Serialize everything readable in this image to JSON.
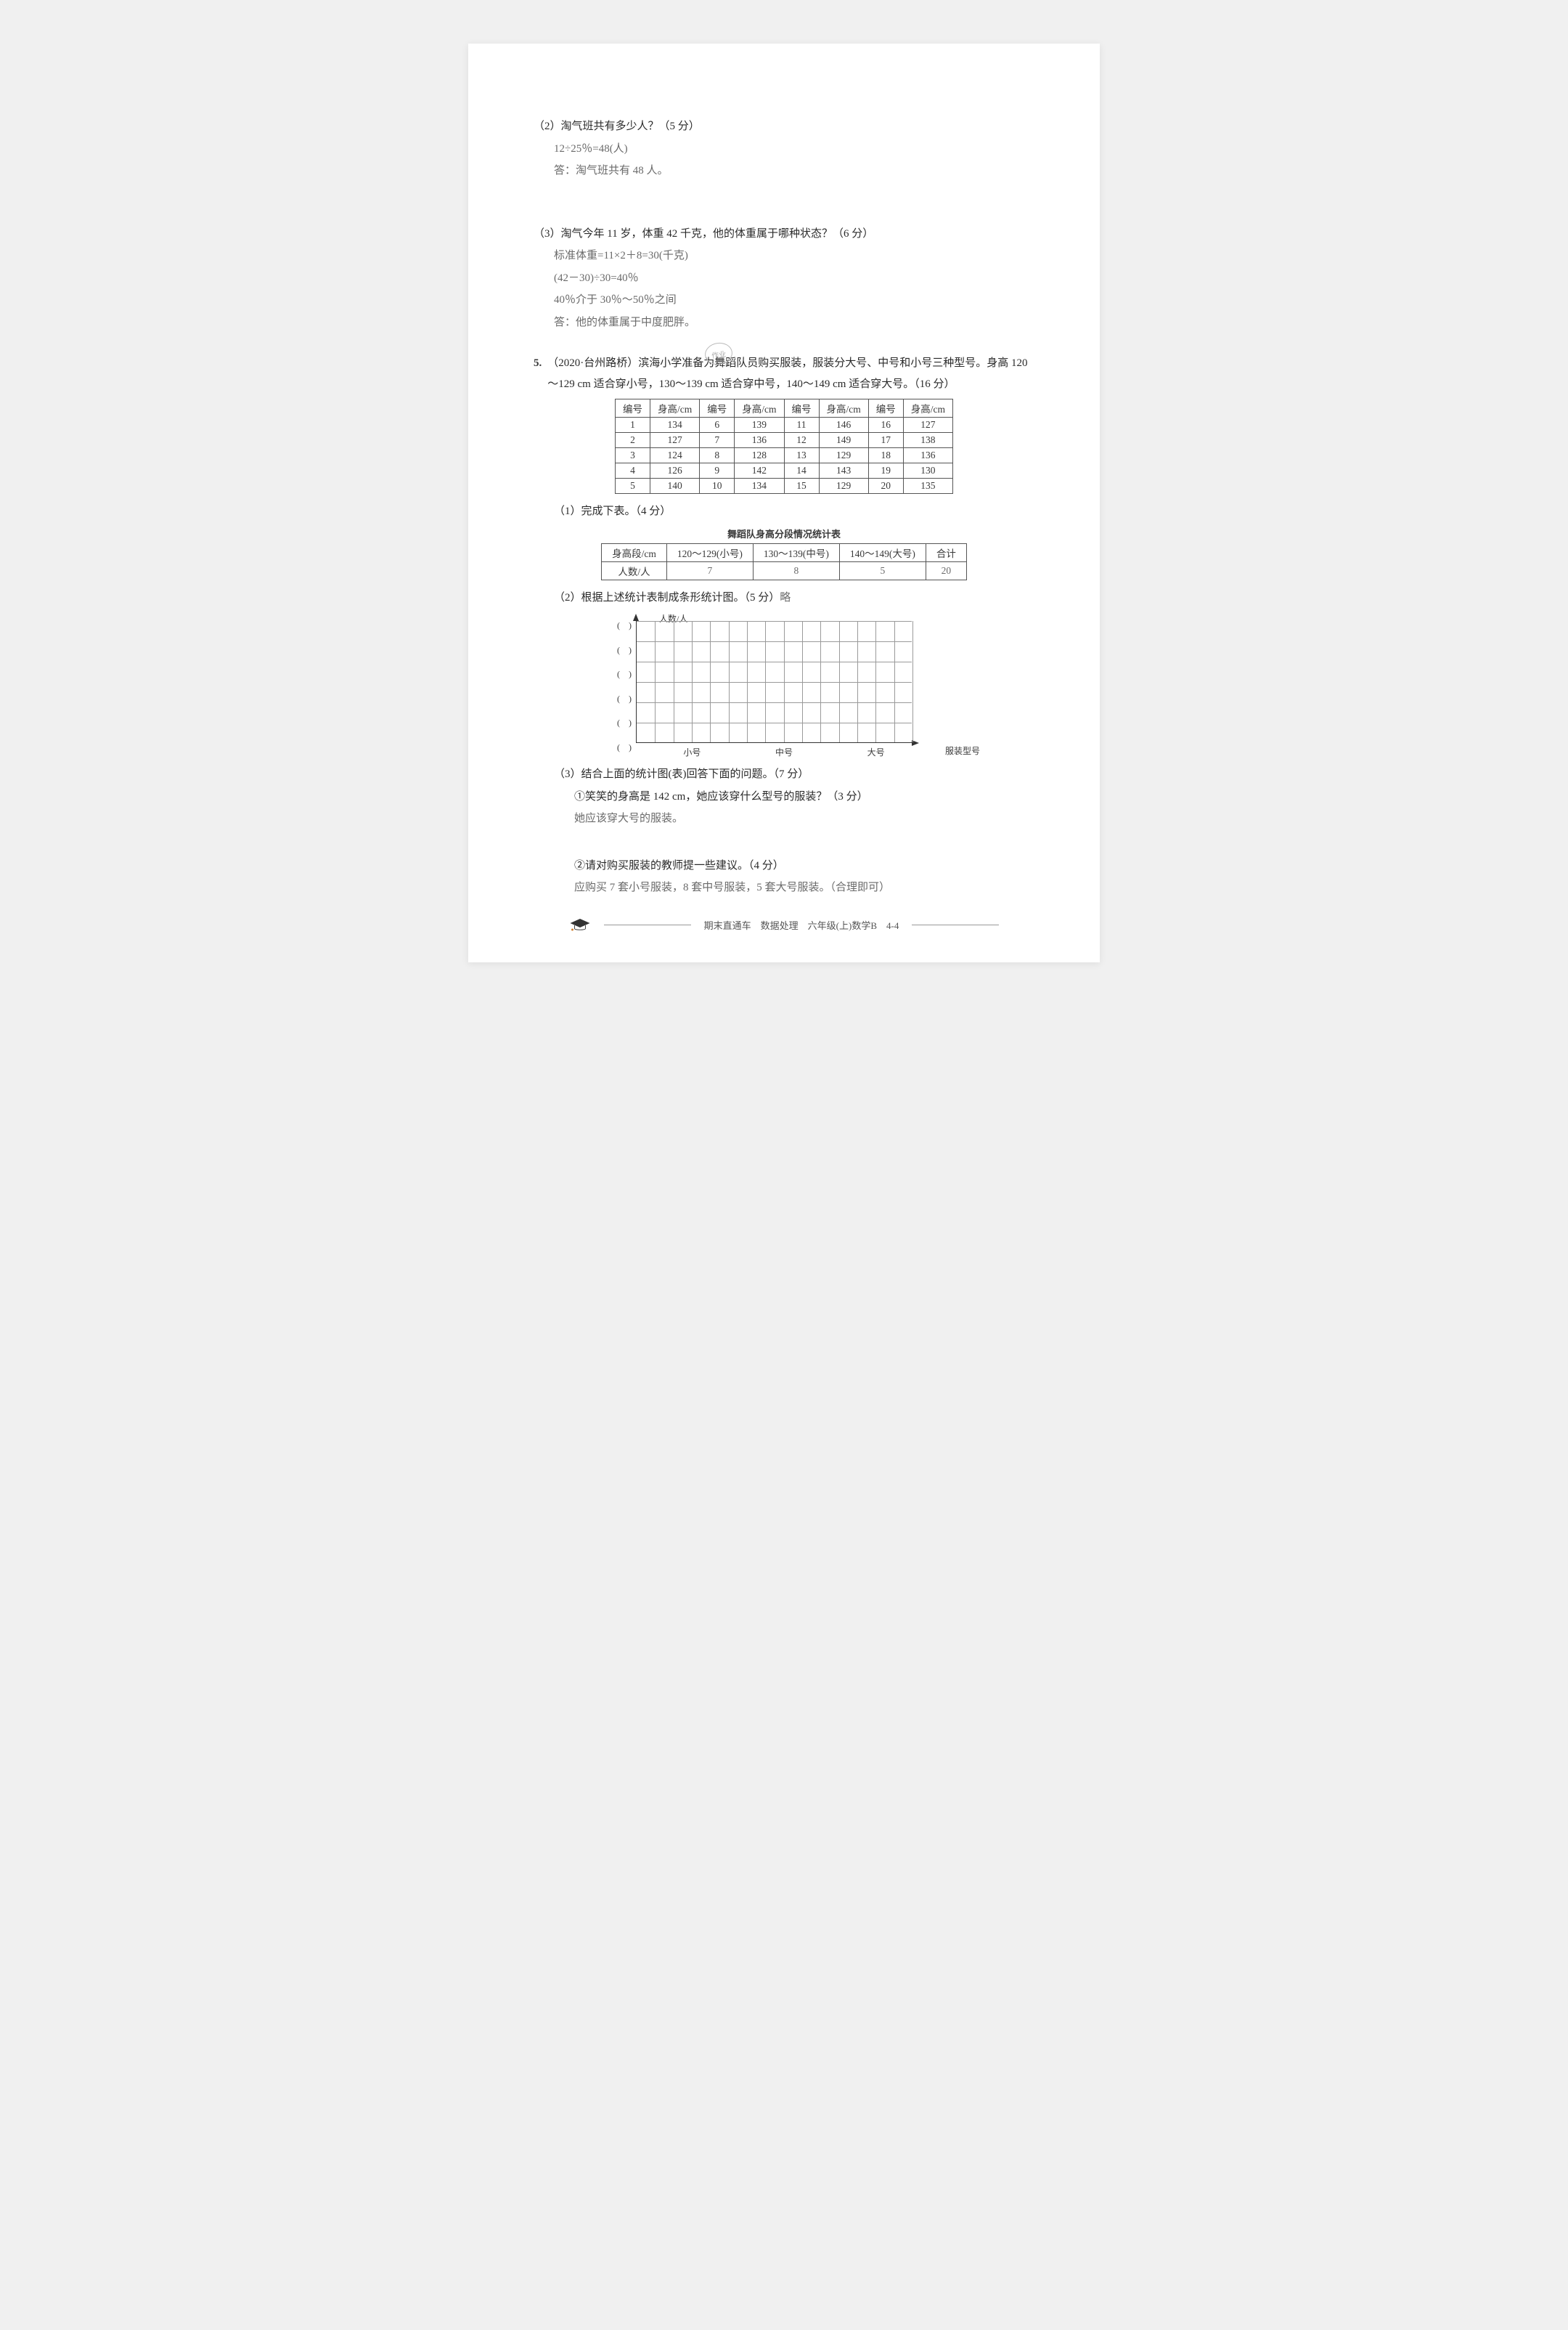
{
  "q2": {
    "question": "（2）淘气班共有多少人？（5 分）",
    "work1": "12÷25％=48(人)",
    "work2": "答：淘气班共有 48 人。"
  },
  "q3": {
    "question": "（3）淘气今年 11 岁，体重 42 千克，他的体重属于哪种状态？（6 分）",
    "work1": "标准体重=11×2＋8=30(千克)",
    "work2": "(42－30)÷30=40％",
    "work3": "40％介于 30％～50％之间",
    "work4": "答：他的体重属于中度肥胖。"
  },
  "stamp_text": "作业",
  "q5": {
    "num": "5.",
    "intro": "（2020·台州路桥）滨海小学准备为舞蹈队员购买服装，服装分大号、中号和小号三种型号。身高 120～129 cm 适合穿小号，130～139 cm 适合穿中号，140～149 cm 适合穿大号。（16 分）",
    "table": {
      "headers": [
        "编号",
        "身高/cm",
        "编号",
        "身高/cm",
        "编号",
        "身高/cm",
        "编号",
        "身高/cm"
      ],
      "rows": [
        [
          "1",
          "134",
          "6",
          "139",
          "11",
          "146",
          "16",
          "127"
        ],
        [
          "2",
          "127",
          "7",
          "136",
          "12",
          "149",
          "17",
          "138"
        ],
        [
          "3",
          "124",
          "8",
          "128",
          "13",
          "129",
          "18",
          "136"
        ],
        [
          "4",
          "126",
          "9",
          "142",
          "14",
          "143",
          "19",
          "130"
        ],
        [
          "5",
          "140",
          "10",
          "134",
          "15",
          "129",
          "20",
          "135"
        ]
      ]
    },
    "sub1": {
      "question": "（1）完成下表。（4 分）",
      "title": "舞蹈队身高分段情况统计表",
      "headers": [
        "身高段/cm",
        "120～129(小号)",
        "130～139(中号)",
        "140～149(大号)",
        "合计"
      ],
      "values": [
        "人数/人",
        "7",
        "8",
        "5",
        "20"
      ]
    },
    "sub2": {
      "question": "（2）根据上述统计表制成条形统计图。（5 分）",
      "ans_inline": "略",
      "chart": {
        "y_axis_title": "人数/人",
        "x_axis_title": "服装型号",
        "y_ticks": [
          "(　)",
          "(　)",
          "(　)",
          "(　)",
          "(　)",
          "(　)"
        ],
        "x_ticks": [
          "小号",
          "中号",
          "大号"
        ],
        "grid_rows": 6,
        "grid_cols": 15,
        "grid_color": "#9a9a9a"
      }
    },
    "sub3": {
      "question": "（3）结合上面的统计图(表)回答下面的问题。（7 分）",
      "part1_q": "①笑笑的身高是 142 cm，她应该穿什么型号的服装？（3 分）",
      "part1_a": "她应该穿大号的服装。",
      "part2_q": "②请对购买服装的教师提一些建议。（4 分）",
      "part2_a": "应购买 7 套小号服装，8 套中号服装，5 套大号服装。（合理即可）"
    }
  },
  "footer": {
    "text": "期末直通车　数据处理　六年级(上)数学B　4-4"
  }
}
